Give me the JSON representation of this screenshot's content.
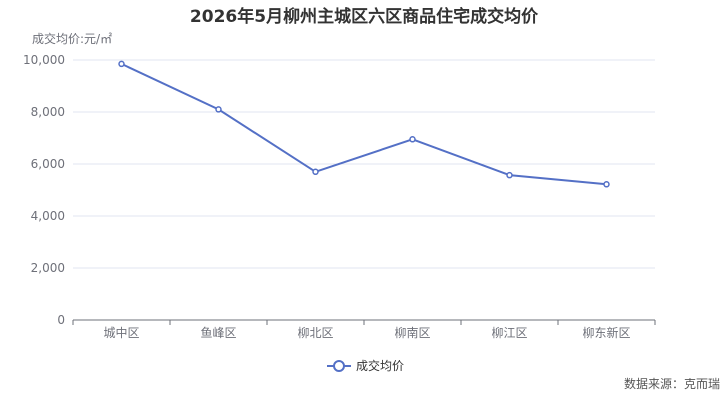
{
  "chart_data": {
    "type": "line",
    "title": "2026年5月柳州主城区六区商品住宅成交均价",
    "ylabel": "成交均价:元/㎡",
    "categories": [
      "城中区",
      "鱼峰区",
      "柳北区",
      "柳南区",
      "柳江区",
      "柳东新区"
    ],
    "series": [
      {
        "name": "成交均价",
        "values": [
          9850,
          8100,
          5700,
          6950,
          5570,
          5220
        ]
      }
    ],
    "ylim": [
      0,
      10000
    ],
    "yticks": [
      0,
      2000,
      4000,
      6000,
      8000,
      10000
    ],
    "ytick_labels": [
      "0",
      "2,000",
      "4,000",
      "6,000",
      "8,000",
      "10,000"
    ],
    "grid": true,
    "legend": "bottom-center",
    "line_color": "#5470c6"
  },
  "source": "数据来源：克而瑞"
}
